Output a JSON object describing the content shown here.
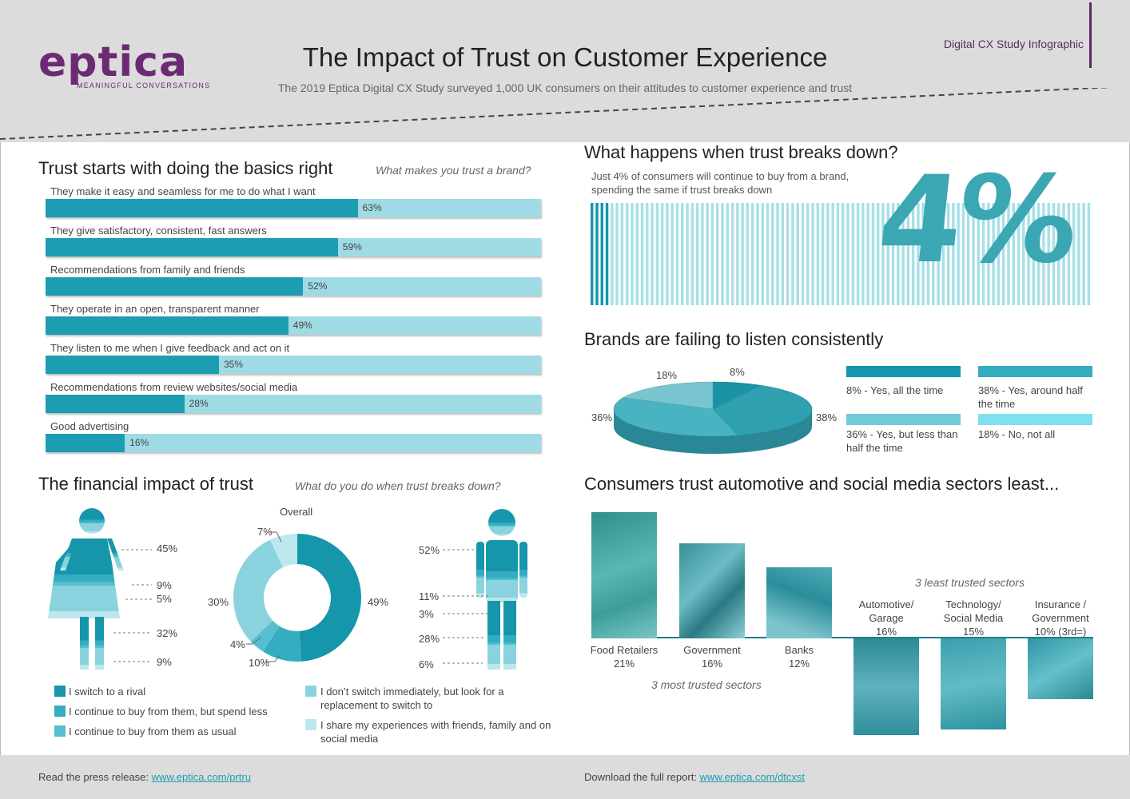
{
  "header": {
    "logo_text": "eptica",
    "logo_tagline": "MEANINGFUL CONVERSATIONS",
    "title": "The Impact of Trust on Customer Experience",
    "subtitle": "The 2019 Eptica Digital CX Study surveyed 1,000 UK consumers on their attitudes to customer experience and trust",
    "study_tag": "Digital CX Study Infographic"
  },
  "colors": {
    "dark_teal": "#1596aa",
    "mid_teal": "#34adc0",
    "light_teal": "#6fcbd8",
    "pale_teal": "#a7e0e8",
    "purple": "#5a2a63",
    "header_gray": "#dcdcdc"
  },
  "trust_basics": {
    "title": "Trust starts with doing the basics right",
    "question": "What makes you trust a brand?",
    "items": [
      {
        "label": "They make it easy and seamless for me to do what I want",
        "value": 63,
        "display": "63%"
      },
      {
        "label": "They give satisfactory, consistent, fast answers",
        "value": 59,
        "display": "59%"
      },
      {
        "label": "Recommendations from family and friends",
        "value": 52,
        "display": "52%"
      },
      {
        "label": "They operate in an open, transparent manner",
        "value": 49,
        "display": "49%"
      },
      {
        "label": "They listen to me when I give feedback and act on it",
        "value": 35,
        "display": "35%"
      },
      {
        "label": "Recommendations from review websites/social media",
        "value": 28,
        "display": "28%"
      },
      {
        "label": "Good advertising",
        "value": 16,
        "display": "16%"
      }
    ]
  },
  "financial": {
    "title": "The financial impact of trust",
    "question": "What do you do when trust breaks down?",
    "overall_label": "Overall",
    "female": [
      "45%",
      "9%",
      "5%",
      "32%",
      "9%"
    ],
    "overall_display": [
      "49%",
      "10%",
      "4%",
      "30%",
      "7%"
    ],
    "male": [
      "52%",
      "11%",
      "3%",
      "28%",
      "6%"
    ],
    "legend": [
      "I switch to a rival",
      "I continue to buy from them, but spend less",
      "I continue to buy from them as usual",
      "I don’t switch immediately, but look for a replacement to switch to",
      "I share my experiences with friends, family and on social media"
    ]
  },
  "breakdown": {
    "title": "What happens when trust breaks down?",
    "text": "Just 4% of consumers will continue to buy from a brand, spending the same if trust breaks down",
    "big_value": "4%",
    "share": 4
  },
  "listen": {
    "title": "Brands are failing to listen consistently",
    "pie_labels": [
      "8%",
      "38%",
      "36%",
      "18%"
    ],
    "legend": [
      "8% - Yes, all the time",
      "38% - Yes, around half the time",
      "36% - Yes, but less than half the time",
      "18% - No, not all"
    ]
  },
  "sectors": {
    "title": "Consumers trust automotive and social media sectors least...",
    "least_caption": "3 least trusted sectors",
    "most_caption": "3 most trusted sectors",
    "items": [
      {
        "name": "Food Retailers",
        "value_text": "21%"
      },
      {
        "name": "Government",
        "value_text": "16%"
      },
      {
        "name": "Banks",
        "value_text": "12%"
      },
      {
        "name": "Automotive/ Garage",
        "value_text": "16%"
      },
      {
        "name": "Technology/ Social Media",
        "value_text": "15%"
      },
      {
        "name": "Insurance / Government",
        "value_text": "10% (3rd=)"
      }
    ]
  },
  "footer": {
    "press_label": "Read the press release:",
    "press_link": "www.eptica.com/prtru",
    "report_label": "Download the full report:",
    "report_link": "www.eptica.com/dtcxst"
  },
  "chart_data": [
    {
      "type": "bar",
      "title": "Trust starts with doing the basics right",
      "subtitle": "What makes you trust a brand?",
      "categories": [
        "They make it easy and seamless for me to do what I want",
        "They give satisfactory, consistent, fast answers",
        "Recommendations from family and friends",
        "They operate in an open, transparent manner",
        "They listen to me when I give feedback and act on it",
        "Recommendations from review websites/social media",
        "Good advertising"
      ],
      "values": [
        63,
        59,
        52,
        49,
        35,
        28,
        16
      ],
      "xlim": [
        0,
        100
      ]
    },
    {
      "type": "pie",
      "title": "The financial impact of trust",
      "subtitle": "What do you do when trust breaks down?",
      "categories": [
        "I switch to a rival",
        "I continue to buy from them, but spend less",
        "I continue to buy from them as usual",
        "I don’t switch immediately, but look for a replacement to switch to",
        "I share my experiences with friends, family and on social media"
      ],
      "series": [
        {
          "name": "Overall",
          "values": [
            49,
            10,
            4,
            30,
            7
          ]
        }
      ],
      "female_values": [
        45,
        9,
        5,
        32,
        9
      ],
      "male_values": [
        52,
        11,
        3,
        28,
        6
      ]
    },
    {
      "type": "pie",
      "title": "Brands are failing to listen consistently",
      "categories": [
        "Yes, all the time",
        "Yes, around half the time",
        "Yes, but less than half the time",
        "No, not all"
      ],
      "values": [
        8,
        38,
        36,
        18
      ]
    },
    {
      "type": "bar",
      "title": "Consumers trust automotive and social media sectors least...",
      "categories": [
        "Food Retailers",
        "Government",
        "Banks",
        "Automotive/ Garage",
        "Technology/ Social Media",
        "Insurance / Government"
      ],
      "values": [
        21,
        16,
        12,
        -16,
        -15,
        -10
      ]
    }
  ]
}
